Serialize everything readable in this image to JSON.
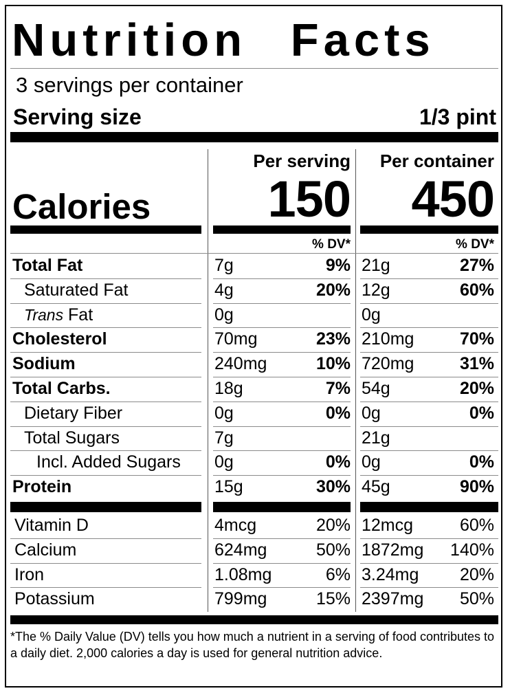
{
  "title": "Nutrition  Facts",
  "servings_per_container": "3 servings per container",
  "serving_size_label": "Serving size",
  "serving_size_value": "1/3 pint",
  "columns": {
    "per_serving": "Per serving",
    "per_container": "Per container",
    "dv_header": "% DV*"
  },
  "calories": {
    "label": "Calories",
    "per_serving": "150",
    "per_container": "450"
  },
  "nutrients": [
    {
      "name": "Total Fat",
      "bold": true,
      "indent": 0,
      "s_amt": "7g",
      "s_dv": "9%",
      "c_amt": "21g",
      "c_dv": "27%"
    },
    {
      "name": "Saturated Fat",
      "bold": false,
      "indent": 1,
      "s_amt": "4g",
      "s_dv": "20%",
      "c_amt": "12g",
      "c_dv": "60%"
    },
    {
      "name_italic": "Trans",
      "name": " Fat",
      "bold": false,
      "indent": 1,
      "s_amt": "0g",
      "s_dv": "",
      "c_amt": "0g",
      "c_dv": ""
    },
    {
      "name": "Cholesterol",
      "bold": true,
      "indent": 0,
      "s_amt": "70mg",
      "s_dv": "23%",
      "c_amt": "210mg",
      "c_dv": "70%"
    },
    {
      "name": "Sodium",
      "bold": true,
      "indent": 0,
      "s_amt": "240mg",
      "s_dv": "10%",
      "c_amt": "720mg",
      "c_dv": "31%"
    },
    {
      "name": "Total Carbs.",
      "bold": true,
      "indent": 0,
      "s_amt": "18g",
      "s_dv": "7%",
      "c_amt": "54g",
      "c_dv": "20%"
    },
    {
      "name": "Dietary Fiber",
      "bold": false,
      "indent": 1,
      "s_amt": "0g",
      "s_dv": "0%",
      "c_amt": "0g",
      "c_dv": "0%"
    },
    {
      "name": "Total Sugars",
      "bold": false,
      "indent": 1,
      "s_amt": "7g",
      "s_dv": "",
      "c_amt": "21g",
      "c_dv": ""
    },
    {
      "name": "Incl. Added Sugars",
      "bold": false,
      "indent": 2,
      "s_amt": "0g",
      "s_dv": "0%",
      "c_amt": "0g",
      "c_dv": "0%"
    },
    {
      "name": "Protein",
      "bold": true,
      "indent": 0,
      "s_amt": "15g",
      "s_dv": "30%",
      "c_amt": "45g",
      "c_dv": "90%"
    }
  ],
  "vitamins": [
    {
      "name": "Vitamin D",
      "s_amt": "4mcg",
      "s_dv": "20%",
      "c_amt": "12mcg",
      "c_dv": "60%"
    },
    {
      "name": "Calcium",
      "s_amt": "624mg",
      "s_dv": "50%",
      "c_amt": "1872mg",
      "c_dv": "140%"
    },
    {
      "name": "Iron",
      "s_amt": "1.08mg",
      "s_dv": "6%",
      "c_amt": "3.24mg",
      "c_dv": "20%"
    },
    {
      "name": "Potassium",
      "s_amt": "799mg",
      "s_dv": "15%",
      "c_amt": "2397mg",
      "c_dv": "50%"
    }
  ],
  "footnote": "The % Daily Value (DV) tells you how much a nutrient in a serving of food contributes to a daily diet. 2,000 calories a day is used for general nutrition advice.",
  "footnote_mark": "*"
}
